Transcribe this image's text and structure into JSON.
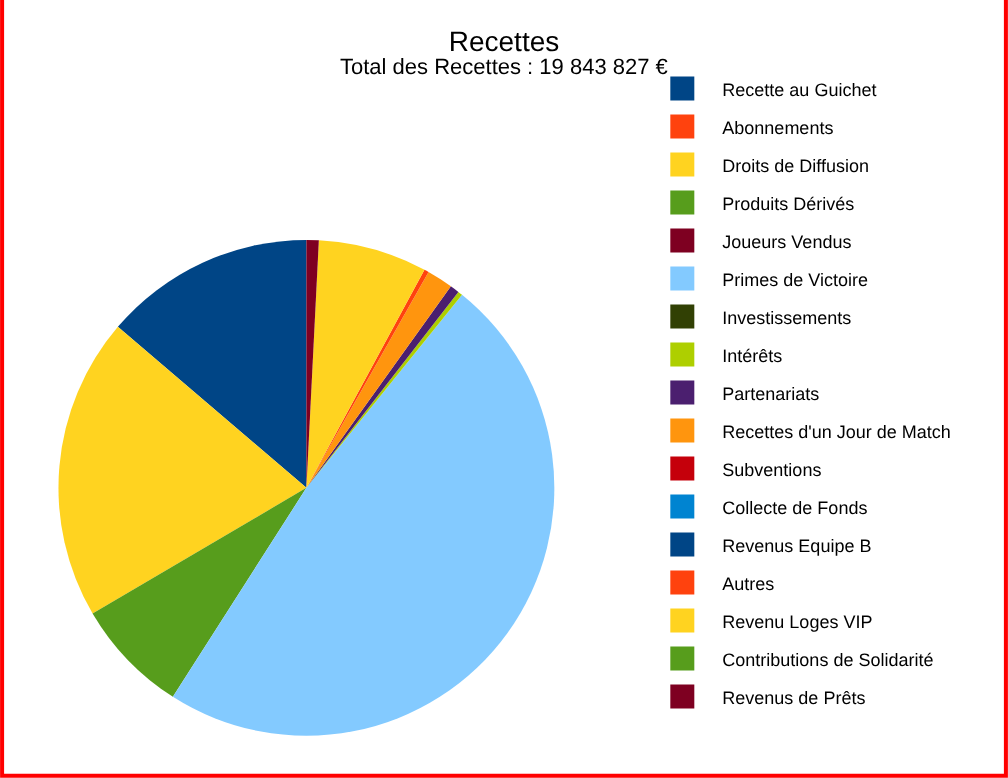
{
  "chart_data": {
    "type": "pie",
    "title": "Recettes",
    "subtitle": "Total des Recettes : 19 843 827 €",
    "categories": [
      "Recette au Guichet",
      "Abonnements",
      "Droits de Diffusion",
      "Produits Dérivés",
      "Joueurs Vendus",
      "Primes de Victoire",
      "Investissements",
      "Intérêts",
      "Partenariats",
      "Recettes d'un Jour de Match",
      "Subventions",
      "Collecte de Fonds",
      "Revenus Equipe B",
      "Autres",
      "Revenu Loges VIP",
      "Contributions de Solidarité",
      "Revenus de Prêts"
    ],
    "values": [
      13.75,
      0,
      19.7,
      7.5,
      0,
      48.25,
      0,
      0.3,
      0.6,
      1.7,
      0,
      0,
      0,
      0.3,
      7.1,
      0,
      0.8
    ],
    "colors": [
      "#004586",
      "#ff420e",
      "#ffd320",
      "#579d1c",
      "#7e0021",
      "#83caff",
      "#314004",
      "#aecf00",
      "#4b1f6f",
      "#ff950e",
      "#c5000b",
      "#0084d1",
      "#004586",
      "#ff420e",
      "#ffd320",
      "#579d1c",
      "#7e0021"
    ],
    "legend": "right"
  }
}
